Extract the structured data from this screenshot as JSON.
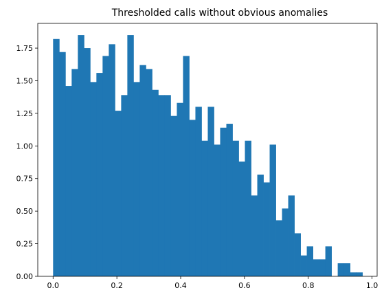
{
  "chart_data": {
    "type": "bar",
    "title": "Thresholded calls without obvious anomalies",
    "xlabel": "",
    "ylabel": "",
    "xlim": [
      -0.048,
      1.016
    ],
    "ylim": [
      0,
      1.94
    ],
    "x_ticks": [
      0.0,
      0.2,
      0.4,
      0.6,
      0.8,
      1.0
    ],
    "x_tick_labels": [
      "0.0",
      "0.2",
      "0.4",
      "0.6",
      "0.8",
      "1.0"
    ],
    "y_ticks": [
      0.0,
      0.25,
      0.5,
      0.75,
      1.0,
      1.25,
      1.5,
      1.75
    ],
    "y_tick_labels": [
      "0.00",
      "0.25",
      "0.50",
      "0.75",
      "1.00",
      "1.25",
      "1.50",
      "1.75"
    ],
    "bin_start": 0.0,
    "bin_width": 0.0194,
    "values": [
      1.82,
      1.72,
      1.46,
      1.59,
      1.85,
      1.75,
      1.49,
      1.56,
      1.69,
      1.78,
      1.27,
      1.39,
      1.85,
      1.49,
      1.62,
      1.59,
      1.43,
      1.39,
      1.39,
      1.23,
      1.33,
      1.69,
      1.2,
      1.3,
      1.04,
      1.3,
      1.01,
      1.14,
      1.17,
      1.04,
      0.88,
      1.04,
      0.62,
      0.78,
      0.72,
      1.01,
      0.43,
      0.52,
      0.62,
      0.33,
      0.16,
      0.23,
      0.13,
      0.13,
      0.23,
      0.0,
      0.1,
      0.1,
      0.03,
      0.03
    ],
    "grid": false,
    "legend": "none",
    "bar_color": "#1f77b4"
  }
}
